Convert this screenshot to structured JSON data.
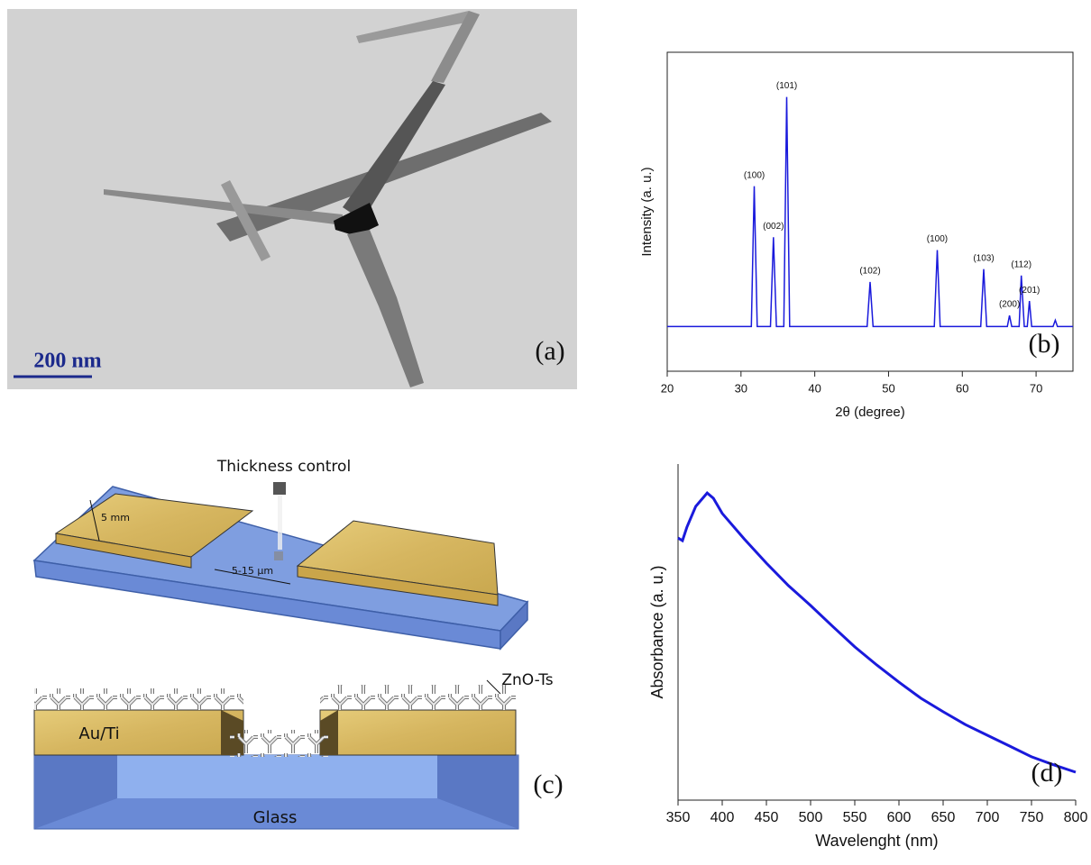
{
  "tem_panel": {
    "scale_bar": "200 nm",
    "panel_label": "(a)"
  },
  "diagram": {
    "thickness": "Thickness control",
    "width": "5 mm",
    "gap": "5-15 μm",
    "particles": "ZnO-Ts",
    "electrode": "Au/Ti",
    "substrate": "Glass",
    "panel_label": "(c)"
  },
  "chart_data": [
    {
      "type": "line",
      "panel_label": "(b)",
      "x_label": "2θ (degree)",
      "y_label": "Intensity (a. u.)",
      "color": "#1a1adc",
      "x": [
        20,
        31.4,
        31.8,
        32.2,
        34.0,
        34.4,
        34.8,
        35.8,
        36.2,
        36.6,
        47.1,
        47.5,
        47.9,
        56.2,
        56.6,
        57.0,
        62.5,
        62.9,
        63.3,
        66.1,
        66.4,
        66.7,
        67.7,
        68.0,
        68.4,
        68.8,
        69.1,
        69.4,
        72.3,
        72.6,
        72.9,
        75
      ],
      "values": [
        14,
        14,
        58,
        14,
        14,
        42,
        14,
        14,
        86,
        14,
        14,
        28,
        14,
        14,
        38,
        14,
        14,
        32,
        14,
        14,
        17.5,
        14,
        14,
        30,
        14,
        14,
        22,
        14,
        14,
        16,
        14,
        14
      ],
      "point_labels": [
        null,
        null,
        "(100)",
        null,
        null,
        "(002)",
        null,
        null,
        "(101)",
        null,
        null,
        "(102)",
        null,
        null,
        "(100)",
        null,
        null,
        "(103)",
        null,
        null,
        "(200)",
        null,
        null,
        "(112)",
        null,
        null,
        "(201)",
        null,
        null,
        null,
        null,
        null
      ],
      "xlim": [
        20,
        75
      ],
      "ylim": [
        0,
        100
      ],
      "xticks": [
        20,
        30,
        40,
        50,
        60,
        70
      ]
    },
    {
      "type": "line",
      "panel_label": "(d)",
      "x_label": "Wavelenght (nm)",
      "y_label": "Absorbance (a. u.)",
      "color": "#1a1adc",
      "x": [
        350,
        355,
        360,
        370,
        383,
        390,
        400,
        425,
        450,
        475,
        500,
        525,
        550,
        575,
        600,
        625,
        650,
        675,
        700,
        725,
        750,
        775,
        800
      ],
      "values": [
        78,
        77.2,
        81.2,
        87.4,
        91.4,
        89.8,
        85.3,
        77.7,
        70.5,
        63.8,
        57.9,
        51.7,
        45.6,
        40.2,
        35.1,
        30.3,
        26.3,
        22.5,
        19.3,
        16.1,
        12.9,
        10.5,
        8.3
      ],
      "xlim": [
        350,
        800
      ],
      "ylim": [
        0,
        100
      ],
      "xticks": [
        350,
        400,
        450,
        500,
        550,
        600,
        650,
        700,
        750,
        800
      ]
    }
  ]
}
